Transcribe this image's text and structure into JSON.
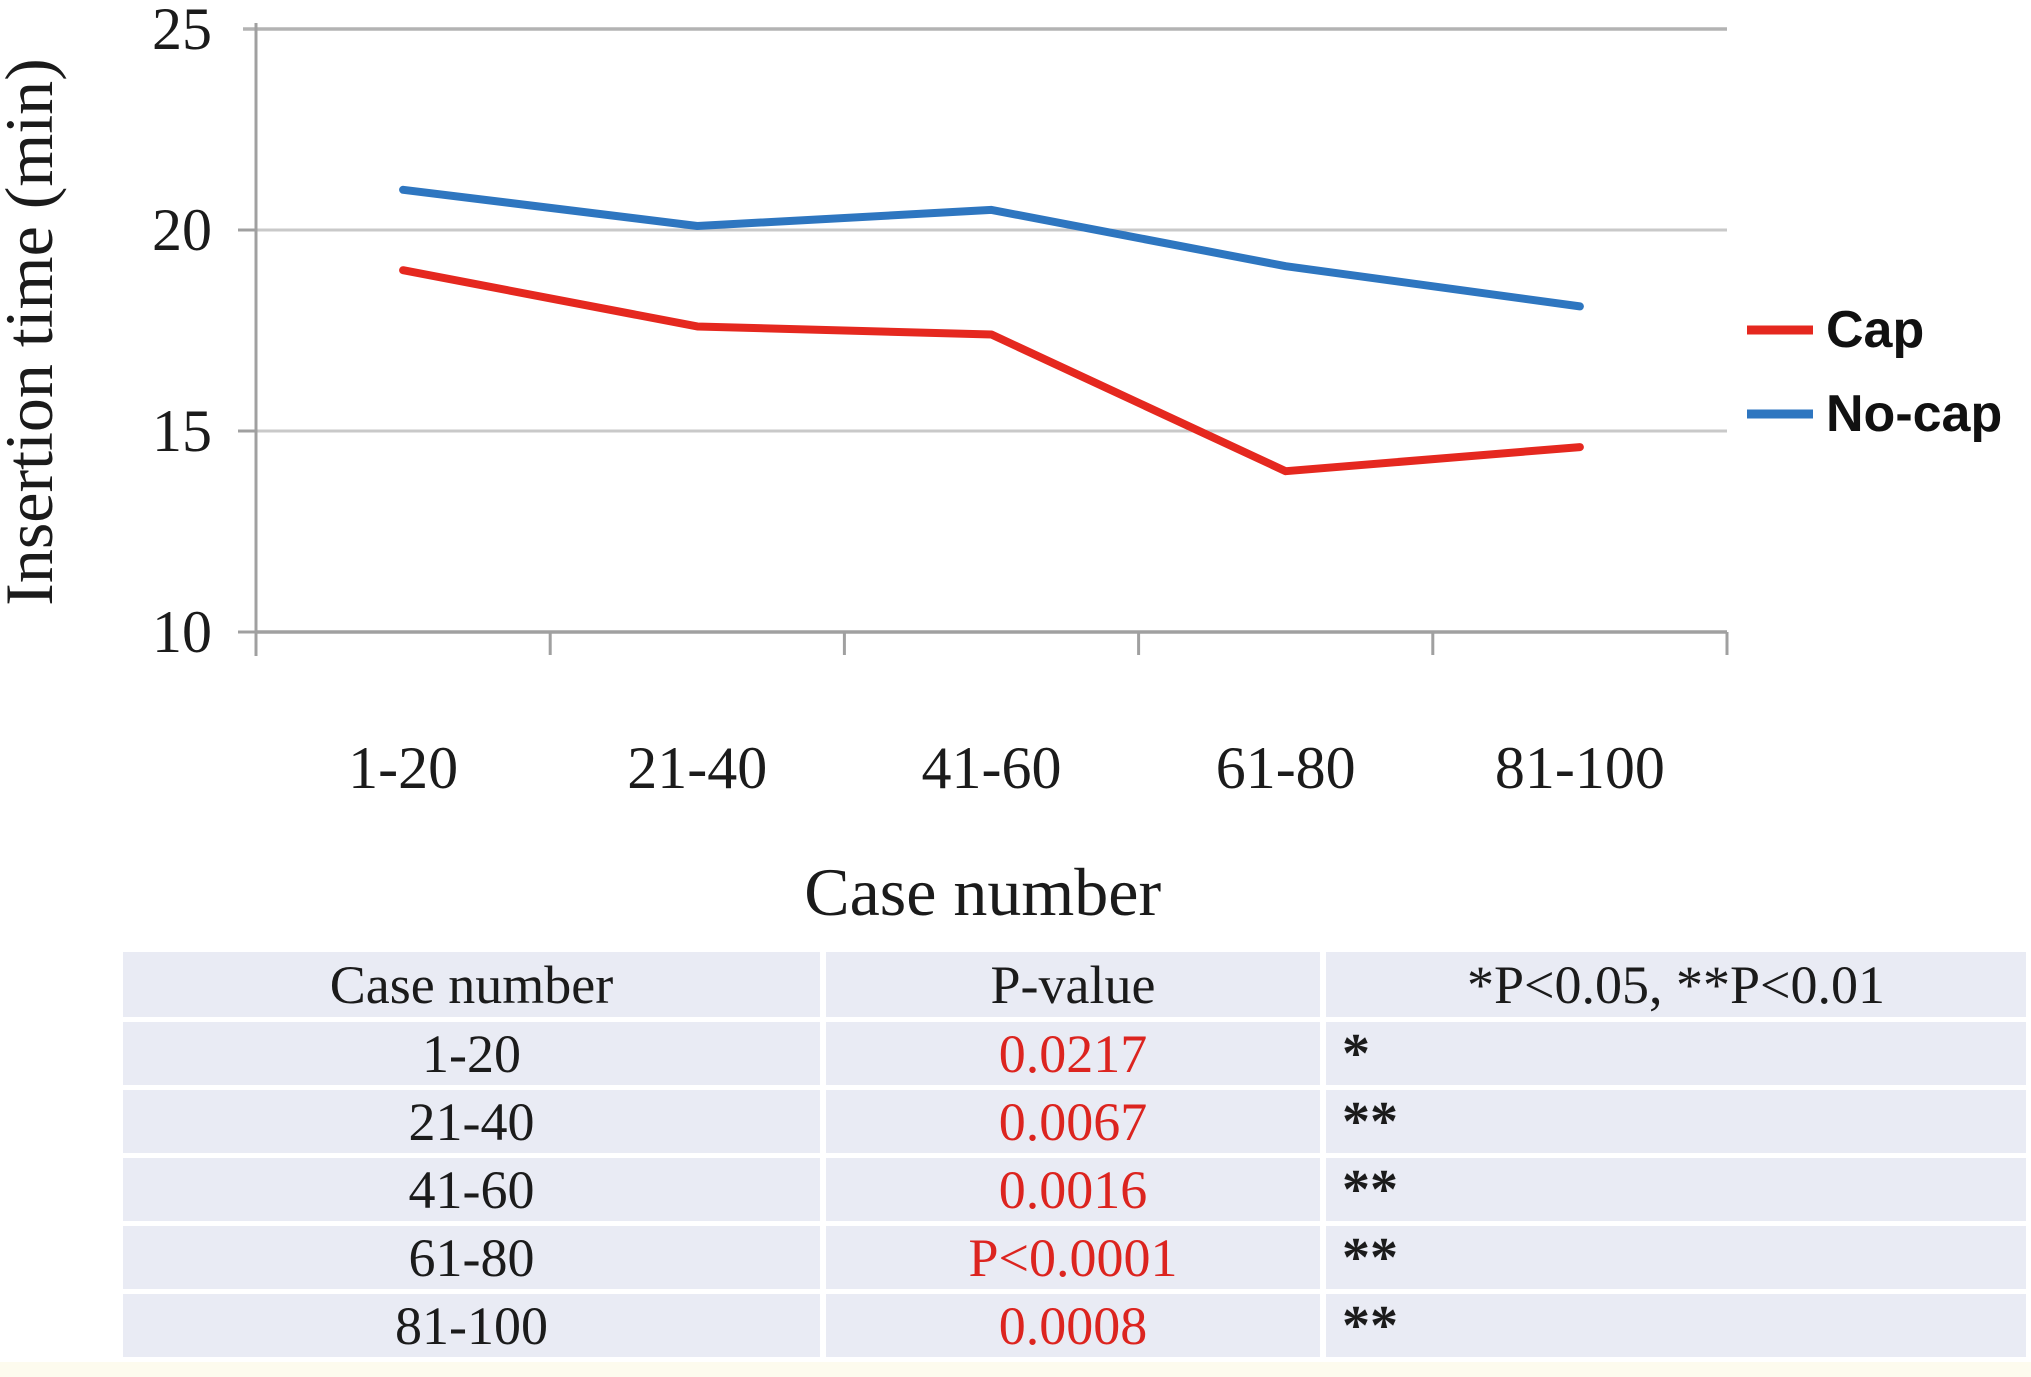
{
  "chart_data": {
    "type": "line",
    "title": "",
    "categories": [
      "1-20",
      "21-40",
      "41-60",
      "61-80",
      "81-100"
    ],
    "series": [
      {
        "name": "Cap",
        "color": "#e5281f",
        "values": [
          19.0,
          17.6,
          17.4,
          14.0,
          14.6
        ]
      },
      {
        "name": "No-cap",
        "color": "#2e76c0",
        "values": [
          21.0,
          20.1,
          20.5,
          19.1,
          18.1
        ]
      }
    ],
    "xlabel": "Case number",
    "ylabel": "Insertion time (min)",
    "ylim": [
      10,
      25
    ],
    "yticks": [
      10,
      15,
      20,
      25
    ],
    "grid": "horizontal",
    "legend_position": "right"
  },
  "table": {
    "headers": [
      "Case number",
      "P-value",
      "*P<0.05, **P<0.01"
    ],
    "rows": [
      {
        "case": "1-20",
        "p_value": "0.0217",
        "significance": "*"
      },
      {
        "case": "21-40",
        "p_value": "0.0067",
        "significance": "**"
      },
      {
        "case": "41-60",
        "p_value": "0.0016",
        "significance": "**"
      },
      {
        "case": "61-80",
        "p_value": "P<0.0001",
        "significance": "**"
      },
      {
        "case": "81-100",
        "p_value": "0.0008",
        "significance": "**"
      }
    ],
    "p_value_color": "#dc241f"
  },
  "colors": {
    "gridline": "#c9c9c9",
    "plot_top_line": "#b3b3b3",
    "axis": "#a0a0a0",
    "text": "#1b1b1b",
    "table_background": "#e9ebf4",
    "table_separator": "#ffffff",
    "bottom_strip": "#fdfbee"
  }
}
